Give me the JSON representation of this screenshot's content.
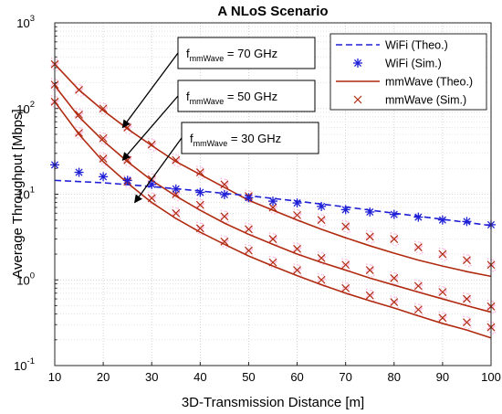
{
  "chart_data": {
    "type": "line",
    "title": "A NLoS Scenario",
    "xlabel": "3D-Transmission Distance [m]",
    "ylabel": "Average Throughput [Mbps]",
    "xlim": [
      10,
      100
    ],
    "ylim": [
      0.1,
      1000
    ],
    "yscale": "log",
    "grid": true,
    "legend_position": "top-right",
    "x_ticks": [
      "10",
      "20",
      "30",
      "40",
      "50",
      "60",
      "70",
      "80",
      "90",
      "100"
    ],
    "y_ticks": [
      {
        "base": "10",
        "exp": "-1",
        "value": 0.1
      },
      {
        "base": "10",
        "exp": "0",
        "value": 1
      },
      {
        "base": "10",
        "exp": "1",
        "value": 10
      },
      {
        "base": "10",
        "exp": "2",
        "value": 100
      },
      {
        "base": "10",
        "exp": "3",
        "value": 1000
      }
    ],
    "legend": [
      {
        "label": "WiFi (Theo.)",
        "series": "wifi_theo"
      },
      {
        "label": "WiFi (Sim.)",
        "series": "wifi_sim"
      },
      {
        "label": "mmWave (Theo.)",
        "series": "mm_theo"
      },
      {
        "label": "mmWave (Sim.)",
        "series": "mm_sim"
      }
    ],
    "colors": {
      "wifi": "#1f1fd6",
      "mmwave": "#b02a10",
      "sim_halo": "#ff9bd4"
    },
    "x": [
      10,
      15,
      20,
      25,
      30,
      35,
      40,
      45,
      50,
      55,
      60,
      65,
      70,
      75,
      80,
      85,
      90,
      95,
      100
    ],
    "wifi_theo": {
      "name": "WiFi (Theo.)",
      "x": [
        10,
        20,
        30,
        40,
        50,
        60,
        70,
        80,
        90,
        100
      ],
      "values": [
        14.5,
        13.6,
        12.3,
        10.9,
        9.6,
        8.3,
        7.1,
        6.0,
        5.1,
        4.3
      ]
    },
    "wifi_sim": {
      "name": "WiFi (Sim.)",
      "x": [
        10,
        15,
        20,
        25,
        30,
        35,
        40,
        45,
        50,
        55,
        60,
        65,
        70,
        75,
        80,
        85,
        90,
        95,
        100
      ],
      "values": [
        22,
        18,
        16,
        14.5,
        13,
        11.5,
        10.5,
        9.9,
        9.1,
        8.3,
        7.9,
        7.2,
        6.6,
        6.2,
        5.8,
        5.4,
        5.0,
        4.8,
        4.4
      ]
    },
    "mm_theo": [
      {
        "name": "mmWave (Theo.)",
        "label": "70 GHz",
        "x": [
          10,
          15,
          20,
          25,
          30,
          35,
          40,
          45,
          50,
          55,
          60,
          65,
          70,
          75,
          80,
          85,
          90,
          95,
          100
        ],
        "values": [
          330,
          165,
          95,
          58,
          37,
          24,
          17,
          12,
          8.5,
          6.5,
          5.0,
          3.9,
          3.1,
          2.5,
          2.05,
          1.7,
          1.45,
          1.25,
          1.1
        ]
      },
      {
        "name": "mmWave (Theo.)",
        "label": "50 GHz",
        "x": [
          10,
          15,
          20,
          25,
          30,
          35,
          40,
          45,
          50,
          55,
          60,
          65,
          70,
          75,
          80,
          85,
          90,
          95,
          100
        ],
        "values": [
          185,
          80,
          42,
          24,
          14.5,
          9.5,
          6.5,
          4.6,
          3.4,
          2.6,
          2.0,
          1.6,
          1.3,
          1.05,
          0.87,
          0.72,
          0.6,
          0.5,
          0.42
        ]
      },
      {
        "name": "mmWave (Theo.)",
        "label": "30 GHz",
        "x": [
          10,
          15,
          20,
          25,
          30,
          35,
          40,
          45,
          50,
          55,
          60,
          65,
          70,
          75,
          80,
          85,
          90,
          95,
          100
        ],
        "values": [
          120,
          50,
          24,
          13.5,
          8,
          5.2,
          3.6,
          2.6,
          1.9,
          1.45,
          1.12,
          0.88,
          0.7,
          0.57,
          0.47,
          0.38,
          0.31,
          0.26,
          0.21
        ]
      }
    ],
    "mm_sim": [
      {
        "name": "mmWave (Sim.)",
        "label": "70 GHz",
        "x": [
          10,
          15,
          20,
          25,
          30,
          35,
          40,
          45,
          50,
          55,
          60,
          65,
          70,
          75,
          80,
          85,
          90,
          95,
          100
        ],
        "values": [
          330,
          165,
          100,
          60,
          38,
          25,
          18,
          13,
          9.5,
          7.0,
          5.7,
          5.0,
          4.2,
          3.2,
          3.0,
          2.4,
          2.0,
          1.7,
          1.5
        ]
      },
      {
        "name": "mmWave (Sim.)",
        "label": "50 GHz",
        "x": [
          10,
          15,
          20,
          25,
          30,
          35,
          40,
          45,
          50,
          55,
          60,
          65,
          70,
          75,
          80,
          85,
          90,
          95,
          100
        ],
        "values": [
          190,
          85,
          45,
          25,
          15,
          10,
          7.5,
          5.5,
          3.9,
          3.0,
          2.3,
          1.8,
          1.5,
          1.3,
          1.05,
          0.85,
          0.72,
          0.6,
          0.49
        ]
      },
      {
        "name": "mmWave (Sim.)",
        "label": "30 GHz",
        "x": [
          10,
          15,
          20,
          25,
          30,
          35,
          40,
          45,
          50,
          55,
          60,
          65,
          70,
          75,
          80,
          85,
          90,
          95,
          100
        ],
        "values": [
          120,
          52,
          26,
          14,
          9,
          6.0,
          4.0,
          2.8,
          2.2,
          1.6,
          1.3,
          1.0,
          0.8,
          0.66,
          0.55,
          0.45,
          0.36,
          0.32,
          0.28
        ]
      }
    ],
    "annotations": [
      {
        "prefix": "f",
        "sub": "mmWave",
        "suffix": " = 70 GHz",
        "x": 24,
        "y": 60
      },
      {
        "prefix": "f",
        "sub": "mmWave",
        "suffix": " = 50 GHz",
        "x": 24,
        "y": 25
      },
      {
        "prefix": "f",
        "sub": "mmWave",
        "suffix": " = 30 GHz",
        "x": 26.5,
        "y": 8
      }
    ]
  }
}
